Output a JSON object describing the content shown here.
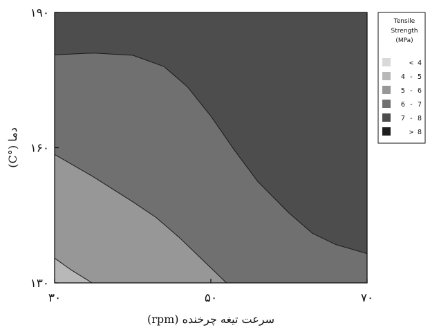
{
  "chart_data": {
    "type": "contour",
    "xlabel": "سرعت تیغه چرخنده (rpm)",
    "ylabel": "دما (°C)",
    "xlim": [
      30,
      70
    ],
    "ylim": [
      130,
      190
    ],
    "x_ticks": [
      {
        "value": 30,
        "label": "۳۰"
      },
      {
        "value": 50,
        "label": "۵۰"
      },
      {
        "value": 70,
        "label": "۷۰"
      }
    ],
    "y_ticks": [
      {
        "value": 130,
        "label": "۱۳۰"
      },
      {
        "value": 160,
        "label": "۱۶۰"
      },
      {
        "value": 190,
        "label": "۱۹۰"
      }
    ],
    "legend": {
      "title_lines": [
        "Tensile",
        "Strength",
        "(MPa)"
      ],
      "placement": "top-right-outside",
      "levels": [
        {
          "label": "< 4",
          "color": "#d9d9d9"
        },
        {
          "label": "4 - 5",
          "color": "#b8b8b8"
        },
        {
          "label": "5 - 6",
          "color": "#979797"
        },
        {
          "label": "6 - 7",
          "color": "#707070"
        },
        {
          "label": "7 - 8",
          "color": "#4d4d4d"
        },
        {
          "label": "> 8",
          "color": "#1e1e1e"
        }
      ]
    },
    "regions": [
      {
        "level": "7 - 8",
        "color": "#4d4d4d",
        "boundary": [
          [
            30,
            190
          ],
          [
            70,
            190
          ],
          [
            70,
            130
          ],
          [
            30,
            130
          ]
        ]
      },
      {
        "level": "6 - 7",
        "color": "#707070",
        "boundary": [
          [
            30,
            180.6
          ],
          [
            35,
            181
          ],
          [
            40,
            180.5
          ],
          [
            44,
            178
          ],
          [
            47,
            173.5
          ],
          [
            50,
            167
          ],
          [
            53,
            159.5
          ],
          [
            56,
            152.5
          ],
          [
            60,
            145.5
          ],
          [
            63,
            141
          ],
          [
            66,
            138.5
          ],
          [
            70,
            136.5
          ],
          [
            70,
            130
          ],
          [
            30,
            130
          ]
        ]
      },
      {
        "level": "5 - 6",
        "color": "#979797",
        "boundary": [
          [
            30,
            158.5
          ],
          [
            35,
            153.5
          ],
          [
            40,
            148
          ],
          [
            43,
            144.5
          ],
          [
            46,
            140
          ],
          [
            49,
            135
          ],
          [
            52,
            130
          ],
          [
            30,
            130
          ]
        ]
      },
      {
        "level": "4 - 5",
        "color": "#b8b8b8",
        "boundary": [
          [
            30,
            135.5
          ],
          [
            32,
            133
          ],
          [
            34.8,
            130
          ],
          [
            30,
            130
          ]
        ]
      }
    ]
  }
}
